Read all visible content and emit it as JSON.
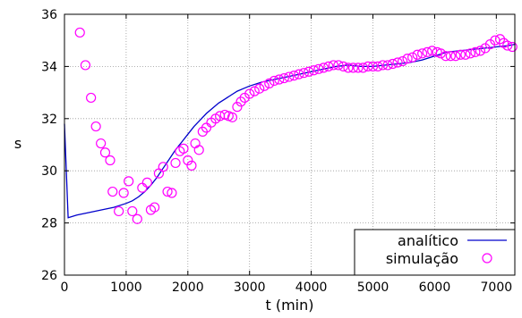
{
  "chart_data": {
    "type": "line",
    "xlabel": "t (min)",
    "ylabel": "s",
    "xlim": [
      0,
      7300
    ],
    "ylim": [
      26,
      36
    ],
    "x_ticks": [
      "0",
      "1000",
      "2000",
      "3000",
      "4000",
      "5000",
      "6000",
      "7000"
    ],
    "y_ticks": [
      "26",
      "28",
      "30",
      "32",
      "34",
      "36"
    ],
    "x_tick_values": [
      0,
      1000,
      2000,
      3000,
      4000,
      5000,
      6000,
      7000
    ],
    "y_tick_values": [
      26,
      28,
      30,
      32,
      34,
      36
    ],
    "grid": true,
    "legend_position": "bottom-right",
    "series": [
      {
        "name": "analítico",
        "style": "line",
        "color": "#0000cc",
        "x": [
          0,
          60,
          200,
          400,
          600,
          800,
          1000,
          1100,
          1200,
          1300,
          1400,
          1500,
          1600,
          1700,
          1800,
          1900,
          2000,
          2100,
          2200,
          2300,
          2400,
          2500,
          2600,
          2700,
          2800,
          2900,
          3000,
          3200,
          3400,
          3600,
          3800,
          4000,
          4200,
          4400,
          4600,
          4800,
          5000,
          5200,
          5400,
          5600,
          5800,
          6000,
          6200,
          6400,
          6600,
          6800,
          7000,
          7200,
          7300
        ],
        "y": [
          31.8,
          28.2,
          28.3,
          28.4,
          28.5,
          28.6,
          28.75,
          28.85,
          29.0,
          29.2,
          29.45,
          29.75,
          30.1,
          30.45,
          30.8,
          31.1,
          31.4,
          31.7,
          31.95,
          32.2,
          32.4,
          32.6,
          32.75,
          32.9,
          33.05,
          33.15,
          33.25,
          33.4,
          33.5,
          33.6,
          33.7,
          33.8,
          33.9,
          34.0,
          34.05,
          34.0,
          34.0,
          34.05,
          34.1,
          34.15,
          34.25,
          34.4,
          34.55,
          34.6,
          34.65,
          34.7,
          34.75,
          34.8,
          34.85
        ]
      },
      {
        "name": "simulação",
        "style": "markers",
        "color": "#ff00ff",
        "x": [
          250,
          340,
          430,
          510,
          590,
          660,
          740,
          780,
          880,
          960,
          1040,
          1100,
          1180,
          1260,
          1340,
          1400,
          1460,
          1530,
          1600,
          1670,
          1740,
          1800,
          1870,
          1930,
          2000,
          2060,
          2120,
          2180,
          2240,
          2300,
          2380,
          2450,
          2520,
          2600,
          2660,
          2720,
          2800,
          2860,
          2920,
          3000,
          3080,
          3160,
          3240,
          3320,
          3400,
          3480,
          3560,
          3640,
          3720,
          3800,
          3880,
          3960,
          4040,
          4120,
          4200,
          4280,
          4360,
          4440,
          4520,
          4600,
          4680,
          4760,
          4840,
          4920,
          5000,
          5080,
          5160,
          5240,
          5320,
          5400,
          5480,
          5560,
          5640,
          5720,
          5800,
          5880,
          5960,
          6040,
          6100,
          6180,
          6260,
          6340,
          6420,
          6500,
          6580,
          6660,
          6740,
          6820,
          6900,
          6980,
          7060,
          7120,
          7180,
          7260
        ],
        "y": [
          35.3,
          34.05,
          32.8,
          31.7,
          31.05,
          30.7,
          30.4,
          29.2,
          28.45,
          29.15,
          29.6,
          28.45,
          28.15,
          29.35,
          29.55,
          28.5,
          28.6,
          29.9,
          30.15,
          29.2,
          29.15,
          30.3,
          30.75,
          30.85,
          30.4,
          30.2,
          31.05,
          30.8,
          31.5,
          31.65,
          31.85,
          32.0,
          32.1,
          32.15,
          32.1,
          32.05,
          32.45,
          32.65,
          32.8,
          32.95,
          33.05,
          33.15,
          33.25,
          33.35,
          33.45,
          33.5,
          33.55,
          33.6,
          33.65,
          33.7,
          33.75,
          33.8,
          33.85,
          33.9,
          33.95,
          34.0,
          34.05,
          34.05,
          34.0,
          33.95,
          33.95,
          33.95,
          33.95,
          34.0,
          34.0,
          34.0,
          34.05,
          34.05,
          34.1,
          34.15,
          34.2,
          34.3,
          34.35,
          34.45,
          34.5,
          34.55,
          34.6,
          34.55,
          34.5,
          34.4,
          34.4,
          34.4,
          34.45,
          34.45,
          34.5,
          34.55,
          34.6,
          34.7,
          34.85,
          35.0,
          35.05,
          34.9,
          34.8,
          34.75
        ]
      }
    ]
  }
}
